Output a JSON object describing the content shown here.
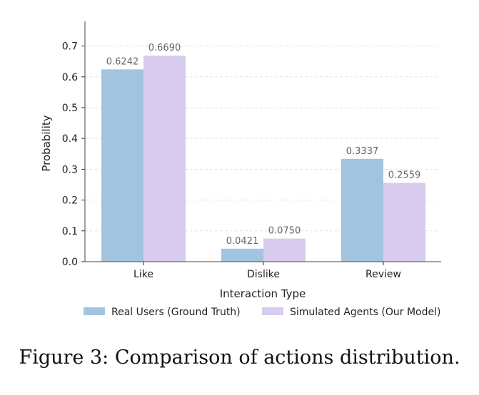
{
  "chart_data": {
    "type": "bar",
    "categories": [
      "Like",
      "Dislike",
      "Review"
    ],
    "series": [
      {
        "name": "Real Users (Ground Truth)",
        "values": [
          0.6242,
          0.0421,
          0.3337
        ],
        "labels": [
          "0.6242",
          "0.0421",
          "0.3337"
        ],
        "color": "#a3c4e0"
      },
      {
        "name": "Simulated Agents (Our Model)",
        "values": [
          0.669,
          0.075,
          0.2559
        ],
        "labels": [
          "0.6690",
          "0.0750",
          "0.2559"
        ],
        "color": "#d7cbee"
      }
    ],
    "xlabel": "Interaction Type",
    "ylabel": "Probability",
    "ylim": [
      0,
      0.78
    ],
    "yticks": [
      0.0,
      0.1,
      0.2,
      0.3,
      0.4,
      0.5,
      0.6,
      0.7
    ],
    "ytick_labels": [
      "0.0",
      "0.1",
      "0.2",
      "0.3",
      "0.4",
      "0.5",
      "0.6",
      "0.7"
    ],
    "grid": "horizontal dashed",
    "legend": "bottom"
  },
  "caption": "Figure 3: Comparison of actions distribution."
}
